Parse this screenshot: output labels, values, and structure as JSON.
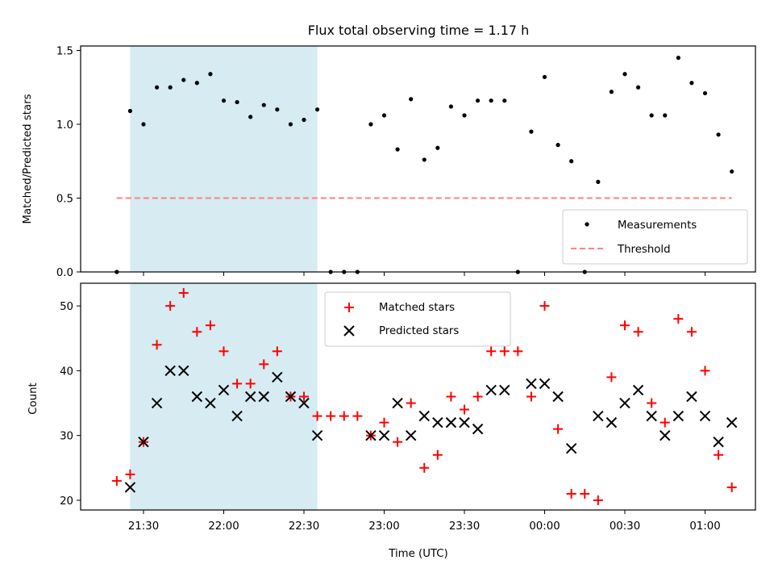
{
  "chart_data": {
    "title": "Flux total observing time = 1.17 h",
    "x_label": "Time (UTC)",
    "x_ticks": [
      "21:30",
      "22:00",
      "22:30",
      "23:00",
      "23:30",
      "00:00",
      "00:30",
      "01:00"
    ],
    "highlight_span": [
      "21:25",
      "22:35"
    ],
    "top_panel": {
      "type": "scatter",
      "y_label": "Matched/Predicted stars",
      "ylim": [
        0,
        1.53
      ],
      "y_ticks": [
        "0.0",
        "0.5",
        "1.0",
        "1.5"
      ],
      "threshold": 0.5,
      "legend": [
        "Measurements",
        "Threshold"
      ],
      "legend_position": "lower right",
      "series": [
        {
          "name": "Measurements",
          "color": "#000000",
          "points": [
            [
              "21:20",
              0.0
            ],
            [
              "21:25",
              1.09
            ],
            [
              "21:30",
              1.0
            ],
            [
              "21:35",
              1.25
            ],
            [
              "21:40",
              1.25
            ],
            [
              "21:45",
              1.3
            ],
            [
              "21:50",
              1.28
            ],
            [
              "21:55",
              1.34
            ],
            [
              "22:00",
              1.16
            ],
            [
              "22:05",
              1.15
            ],
            [
              "22:10",
              1.05
            ],
            [
              "22:15",
              1.13
            ],
            [
              "22:20",
              1.1
            ],
            [
              "22:25",
              1.0
            ],
            [
              "22:30",
              1.03
            ],
            [
              "22:35",
              1.1
            ],
            [
              "22:40",
              0.0
            ],
            [
              "22:45",
              0.0
            ],
            [
              "22:50",
              0.0
            ],
            [
              "22:55",
              1.0
            ],
            [
              "23:00",
              1.06
            ],
            [
              "23:05",
              0.83
            ],
            [
              "23:10",
              1.17
            ],
            [
              "23:15",
              0.76
            ],
            [
              "23:20",
              0.84
            ],
            [
              "23:25",
              1.12
            ],
            [
              "23:30",
              1.06
            ],
            [
              "23:35",
              1.16
            ],
            [
              "23:40",
              1.16
            ],
            [
              "23:45",
              1.16
            ],
            [
              "23:50",
              0.0
            ],
            [
              "23:55",
              0.95
            ],
            [
              "00:00",
              1.32
            ],
            [
              "00:05",
              0.86
            ],
            [
              "00:10",
              0.75
            ],
            [
              "00:15",
              0.0
            ],
            [
              "00:20",
              0.61
            ],
            [
              "00:25",
              1.22
            ],
            [
              "00:30",
              1.34
            ],
            [
              "00:35",
              1.25
            ],
            [
              "00:40",
              1.06
            ],
            [
              "00:45",
              1.06
            ],
            [
              "00:50",
              1.45
            ],
            [
              "00:55",
              1.28
            ],
            [
              "01:00",
              1.21
            ],
            [
              "01:05",
              0.93
            ],
            [
              "01:10",
              0.68
            ]
          ]
        },
        {
          "name": "Threshold",
          "color": "#ff8080",
          "style": "dashed"
        }
      ]
    },
    "bottom_panel": {
      "type": "scatter",
      "y_label": "Count",
      "ylim": [
        18.5,
        53.5
      ],
      "y_ticks": [
        "20",
        "30",
        "40",
        "50"
      ],
      "legend": [
        "Matched stars",
        "Predicted stars"
      ],
      "legend_position": "upper center",
      "series": [
        {
          "name": "Matched stars",
          "color": "#ff0000",
          "marker": "plus",
          "points": [
            [
              "21:20",
              23
            ],
            [
              "21:25",
              24
            ],
            [
              "21:30",
              29
            ],
            [
              "21:35",
              44
            ],
            [
              "21:40",
              50
            ],
            [
              "21:45",
              52
            ],
            [
              "21:50",
              46
            ],
            [
              "21:55",
              47
            ],
            [
              "22:00",
              43
            ],
            [
              "22:05",
              38
            ],
            [
              "22:10",
              38
            ],
            [
              "22:15",
              41
            ],
            [
              "22:20",
              43
            ],
            [
              "22:25",
              36
            ],
            [
              "22:30",
              36
            ],
            [
              "22:35",
              33
            ],
            [
              "22:40",
              33
            ],
            [
              "22:45",
              33
            ],
            [
              "22:50",
              33
            ],
            [
              "22:55",
              30
            ],
            [
              "23:00",
              32
            ],
            [
              "23:05",
              29
            ],
            [
              "23:10",
              35
            ],
            [
              "23:15",
              25
            ],
            [
              "23:20",
              27
            ],
            [
              "23:25",
              36
            ],
            [
              "23:30",
              34
            ],
            [
              "23:35",
              36
            ],
            [
              "23:40",
              43
            ],
            [
              "23:45",
              43
            ],
            [
              "23:50",
              43
            ],
            [
              "23:55",
              36
            ],
            [
              "00:00",
              50
            ],
            [
              "00:05",
              31
            ],
            [
              "00:10",
              21
            ],
            [
              "00:15",
              21
            ],
            [
              "00:20",
              20
            ],
            [
              "00:25",
              39
            ],
            [
              "00:30",
              47
            ],
            [
              "00:35",
              46
            ],
            [
              "00:40",
              35
            ],
            [
              "00:45",
              32
            ],
            [
              "00:50",
              48
            ],
            [
              "00:55",
              46
            ],
            [
              "01:00",
              40
            ],
            [
              "01:05",
              27
            ],
            [
              "01:10",
              22
            ]
          ]
        },
        {
          "name": "Predicted stars",
          "color": "#000000",
          "marker": "x",
          "points": [
            [
              "21:25",
              22
            ],
            [
              "21:30",
              29
            ],
            [
              "21:35",
              35
            ],
            [
              "21:40",
              40
            ],
            [
              "21:45",
              40
            ],
            [
              "21:50",
              36
            ],
            [
              "21:55",
              35
            ],
            [
              "22:00",
              37
            ],
            [
              "22:05",
              33
            ],
            [
              "22:10",
              36
            ],
            [
              "22:15",
              36
            ],
            [
              "22:20",
              39
            ],
            [
              "22:25",
              36
            ],
            [
              "22:30",
              35
            ],
            [
              "22:35",
              30
            ],
            [
              "22:55",
              30
            ],
            [
              "23:00",
              30
            ],
            [
              "23:05",
              35
            ],
            [
              "23:10",
              30
            ],
            [
              "23:15",
              33
            ],
            [
              "23:20",
              32
            ],
            [
              "23:25",
              32
            ],
            [
              "23:30",
              32
            ],
            [
              "23:35",
              31
            ],
            [
              "23:40",
              37
            ],
            [
              "23:45",
              37
            ],
            [
              "23:55",
              38
            ],
            [
              "00:00",
              38
            ],
            [
              "00:05",
              36
            ],
            [
              "00:10",
              28
            ],
            [
              "00:20",
              33
            ],
            [
              "00:25",
              32
            ],
            [
              "00:30",
              35
            ],
            [
              "00:35",
              37
            ],
            [
              "00:40",
              33
            ],
            [
              "00:45",
              30
            ],
            [
              "00:50",
              33
            ],
            [
              "00:55",
              36
            ],
            [
              "01:00",
              33
            ],
            [
              "01:05",
              29
            ],
            [
              "01:10",
              32
            ]
          ]
        }
      ]
    }
  }
}
